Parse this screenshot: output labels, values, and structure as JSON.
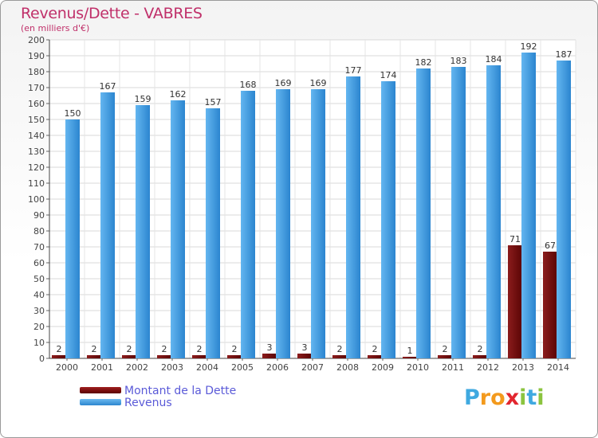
{
  "title": "Revenus/Dette - VABRES",
  "subtitle": "(en milliers d'€)",
  "chart_data": {
    "type": "bar",
    "categories": [
      "2000",
      "2001",
      "2002",
      "2003",
      "2004",
      "2005",
      "2006",
      "2007",
      "2008",
      "2009",
      "2010",
      "2011",
      "2012",
      "2013",
      "2014"
    ],
    "series": [
      {
        "name": "Montant de la Dette",
        "values": [
          2,
          2,
          2,
          2,
          2,
          2,
          3,
          3,
          2,
          2,
          1,
          2,
          2,
          71,
          67
        ],
        "color": "#7a1010"
      },
      {
        "name": "Revenus",
        "values": [
          150,
          167,
          159,
          162,
          157,
          168,
          169,
          169,
          177,
          174,
          182,
          183,
          184,
          192,
          187
        ],
        "color": "#4aa3e6"
      }
    ],
    "ylim": [
      0,
      200
    ],
    "ytick_step": 10,
    "grid": true,
    "legend_position": "bottom-left"
  },
  "legend": {
    "debt_label": "Montant de la Dette",
    "revenue_label": "Revenus"
  },
  "brand": {
    "letters": [
      "P",
      "r",
      "o",
      "x",
      "i",
      "t",
      "i"
    ],
    "colors": [
      "#3fa9e0",
      "#f39a1d",
      "#f39a1d",
      "#e2262f",
      "#8bc43f",
      "#3fa9e0",
      "#8bc43f"
    ]
  }
}
